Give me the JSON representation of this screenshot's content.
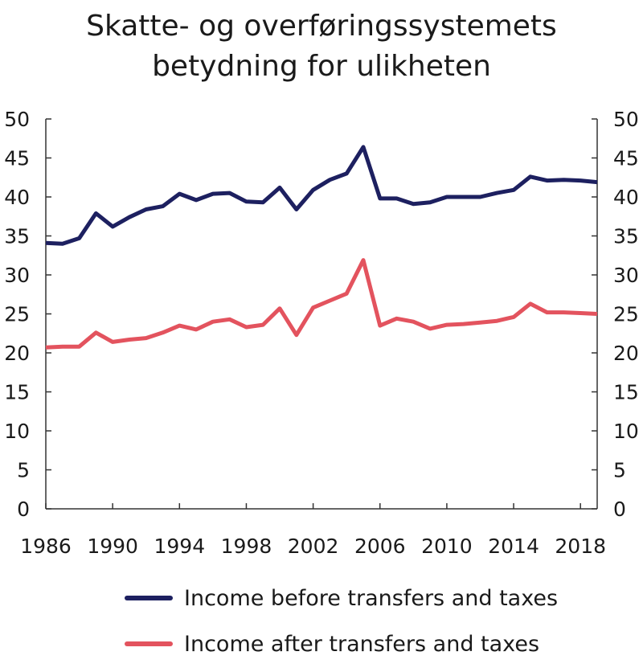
{
  "chart_data": {
    "type": "line",
    "title_lines": [
      "Skatte- og overføringssystemets",
      "betydning for ulikheten"
    ],
    "x": [
      1986,
      1987,
      1988,
      1989,
      1990,
      1991,
      1992,
      1993,
      1994,
      1995,
      1996,
      1997,
      1998,
      1999,
      2000,
      2001,
      2002,
      2003,
      2004,
      2005,
      2006,
      2007,
      2008,
      2009,
      2010,
      2011,
      2012,
      2013,
      2014,
      2015,
      2016,
      2017,
      2018,
      2019
    ],
    "x_ticks": [
      1986,
      1990,
      1994,
      1998,
      2002,
      2006,
      2010,
      2014,
      2018
    ],
    "y_ticks": [
      0,
      5,
      10,
      15,
      20,
      25,
      30,
      35,
      40,
      45,
      50
    ],
    "ylim": [
      0,
      50
    ],
    "xlim": [
      1986,
      2019
    ],
    "grid": false,
    "legend_position": "bottom",
    "series": [
      {
        "name": "Income before transfers and taxes",
        "color": "#1d2060",
        "values": [
          34.1,
          34.0,
          34.7,
          37.9,
          36.2,
          37.4,
          38.4,
          38.8,
          40.4,
          39.6,
          40.4,
          40.5,
          39.4,
          39.3,
          41.2,
          38.4,
          40.9,
          42.2,
          43.0,
          46.4,
          39.8,
          39.8,
          39.1,
          39.3,
          40.0,
          40.0,
          40.0,
          40.5,
          40.9,
          42.6,
          42.1,
          42.2,
          42.1,
          41.9
        ]
      },
      {
        "name": "Income after transfers and taxes",
        "color": "#e3535e",
        "values": [
          20.7,
          20.8,
          20.8,
          22.6,
          21.4,
          21.7,
          21.9,
          22.6,
          23.5,
          23.0,
          24.0,
          24.3,
          23.3,
          23.6,
          25.7,
          22.3,
          25.8,
          26.7,
          27.6,
          31.9,
          23.5,
          24.4,
          24.0,
          23.1,
          23.6,
          23.7,
          23.9,
          24.1,
          24.6,
          26.3,
          25.2,
          25.2,
          25.1,
          25.0
        ]
      }
    ]
  }
}
